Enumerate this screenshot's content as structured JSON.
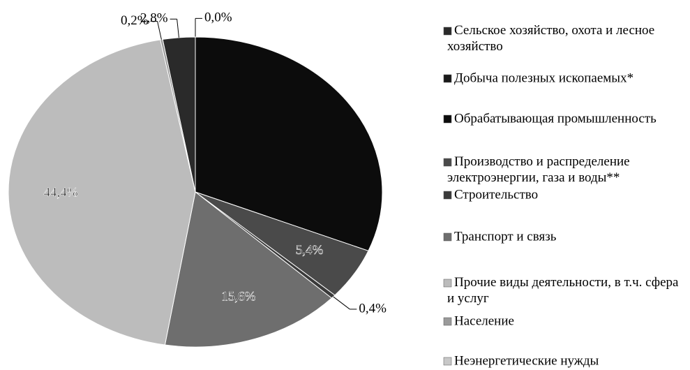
{
  "chart_data": {
    "type": "pie",
    "categories": [
      "Сельское хозяйство, охота и лесное хозяйство",
      "Добыча полезных ископаемых*",
      "Обрабатывающая промышленность",
      "Производство и распределение электроэнергии, газа и воды**",
      "Строительство",
      "Транспорт и связь",
      "Прочие виды деятельности, в т.ч. сфера и услуг",
      "Население",
      "Неэнергетические нужды"
    ],
    "values": [
      2.8,
      0.0,
      31.2,
      5.4,
      0.4,
      15.6,
      44.4,
      0.2,
      null
    ],
    "value_labels": [
      "2,8%",
      "0,0%",
      null,
      "5,4%",
      "0,4%",
      "15,6%",
      "44,4%",
      "0,2%",
      null
    ],
    "colors": [
      "#2a2a2a",
      "#1a1a1a",
      "#0c0c0c",
      "#4a4a4a",
      "#3a3a3a",
      "#6e6e6e",
      "#bcbcbc",
      "#9a9a9a",
      "#c8c8c8"
    ],
    "legend": "right"
  }
}
